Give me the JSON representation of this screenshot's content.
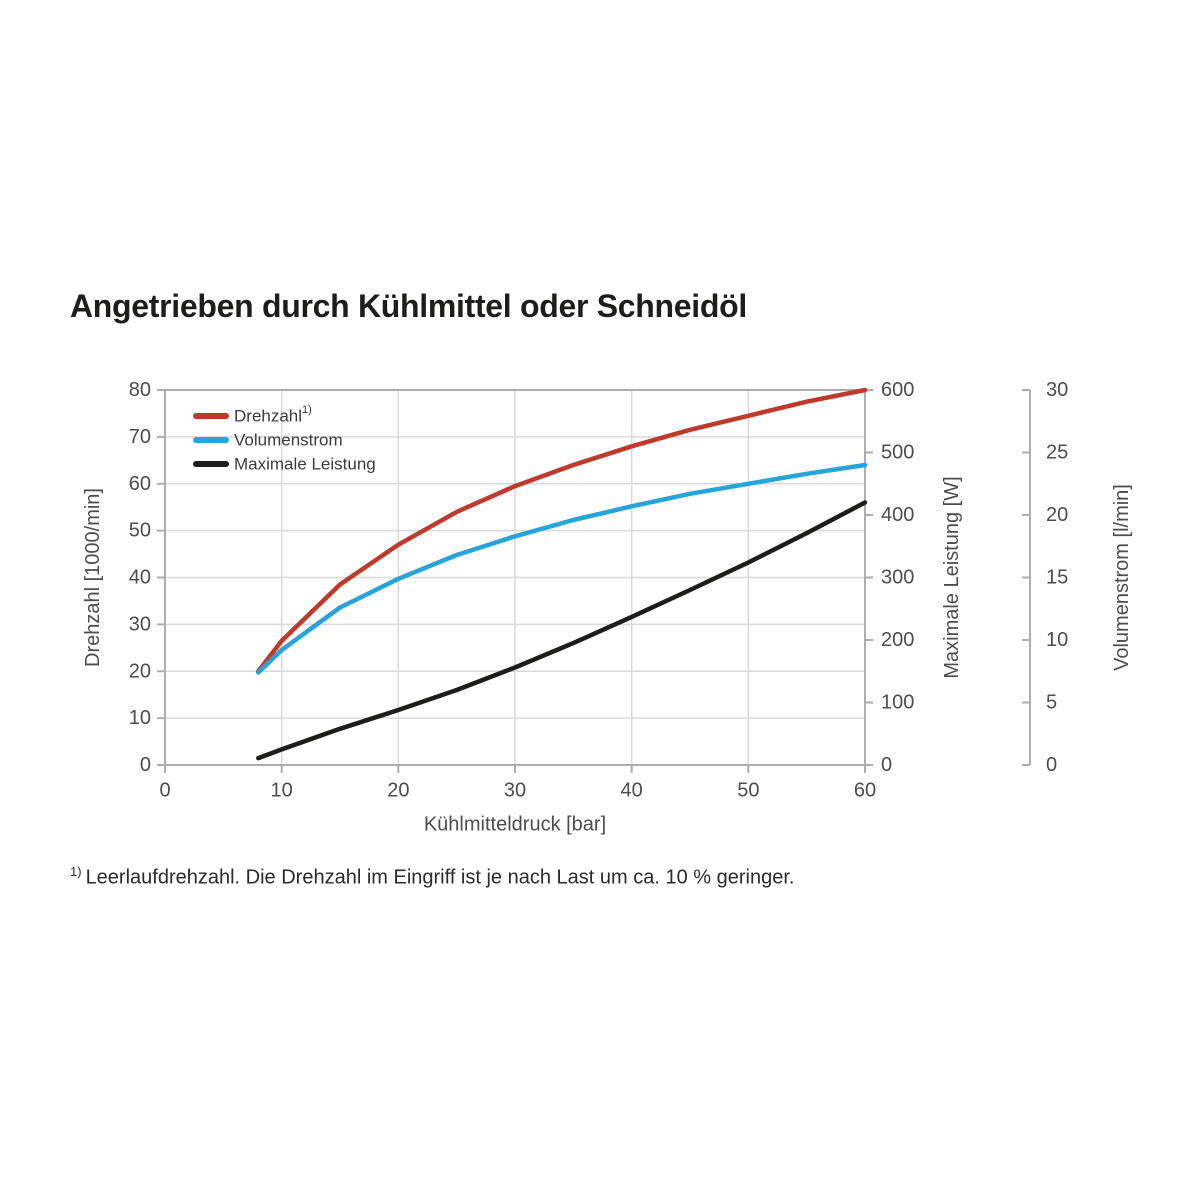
{
  "page": {
    "title": "Angetrieben durch Kühlmittel oder Schneidöl",
    "footnote_marker": "1)",
    "footnote_text": "Leerlaufdrehzahl. Die Drehzahl im Eingriff ist je nach Last um ca. 10 % geringer."
  },
  "colors": {
    "drehzahl_red": "#c03a2b",
    "volumenstrom_blue": "#27a4da",
    "leistung_black": "#1d1d1b",
    "grid": "#d9d9d9",
    "spine": "#adadad",
    "tick_text": "#4d4d4d",
    "legend_text": "#3c3c3b",
    "title_text": "#1d1d1b"
  },
  "chart_data": {
    "type": "line",
    "title": "Angetrieben durch Kühlmittel oder Schneidöl",
    "xlabel": "Kühlmitteldruck [bar]",
    "grid": true,
    "legend_position": "top-left",
    "x_axis": {
      "range": [
        0,
        60
      ],
      "ticks": [
        0,
        10,
        20,
        30,
        40,
        50,
        60
      ]
    },
    "left_axis": {
      "label": "Drehzahl [1000/min]",
      "range": [
        0,
        80
      ],
      "ticks": [
        0,
        10,
        20,
        30,
        40,
        50,
        60,
        70,
        80
      ]
    },
    "right_axis_power": {
      "label": "Maximale Leistung [W]",
      "range": [
        0,
        600
      ],
      "ticks": [
        0,
        100,
        200,
        300,
        400,
        500,
        600
      ]
    },
    "right_axis_flow": {
      "label": "Volumenstrom [l/min]",
      "range": [
        0,
        30
      ],
      "ticks": [
        0,
        5,
        10,
        15,
        20,
        25,
        30
      ]
    },
    "x": [
      8,
      10,
      15,
      20,
      25,
      30,
      35,
      40,
      45,
      50,
      55,
      60
    ],
    "series": [
      {
        "id": "drehzahl",
        "legend": "Drehzahl",
        "legend_sup": "1)",
        "axis": "left",
        "color": "#c03a2b",
        "values": [
          20,
          26.5,
          38.5,
          47,
          54,
          59.5,
          64,
          68,
          71.5,
          74.5,
          77.5,
          80
        ]
      },
      {
        "id": "volumenstrom",
        "legend": "Volumenstrom",
        "legend_sup": "",
        "axis": "flow",
        "color": "#27a4da",
        "values": [
          7.4,
          9.2,
          12.6,
          14.9,
          16.8,
          18.3,
          19.6,
          20.7,
          21.7,
          22.5,
          23.3,
          24
        ]
      },
      {
        "id": "leistung",
        "legend": "Maximale Leistung",
        "legend_sup": "",
        "axis": "power",
        "color": "#1d1d1b",
        "values": [
          11,
          25,
          58,
          88,
          120,
          156,
          195,
          237,
          280,
          324,
          371,
          420
        ]
      }
    ],
    "footnote": "Leerlaufdrehzahl. Die Drehzahl im Eingriff ist je nach Last um ca. 10 % geringer."
  }
}
